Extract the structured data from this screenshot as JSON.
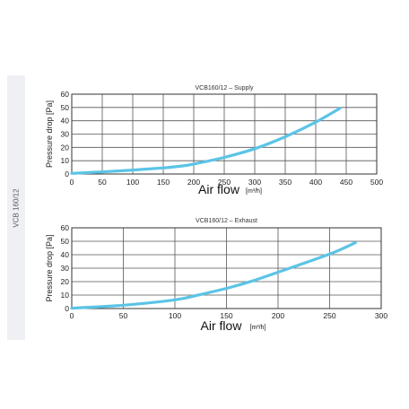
{
  "side_label": "VCB 160/12",
  "colors": {
    "curve": "#5bc4e6",
    "grid": "#555555",
    "side_band": "#eef0f4"
  },
  "chart_data": [
    {
      "type": "line",
      "title": "VCB160/12 – Supply",
      "ylabel": "Pressure drop [Pa]",
      "xlabel_main": "Air flow",
      "xlabel_unit": "[m³/h]",
      "xlim": [
        0,
        500
      ],
      "ylim": [
        0,
        60
      ],
      "x_ticks": [
        0,
        50,
        100,
        150,
        200,
        250,
        300,
        350,
        400,
        450,
        500
      ],
      "y_ticks": [
        0,
        10,
        20,
        30,
        40,
        50,
        60
      ],
      "grid": true,
      "series": [
        {
          "x": [
            0,
            50,
            100,
            150,
            180,
            200,
            250,
            300,
            350,
            400,
            440
          ],
          "y": [
            0.5,
            1.6,
            3,
            4.6,
            6,
            7.5,
            12.5,
            19,
            28,
            39,
            49.5
          ]
        }
      ]
    },
    {
      "type": "line",
      "title": "VCB160/12 – Exhaust",
      "ylabel": "Pressure drop [Pa]",
      "xlabel_main": "Air flow",
      "xlabel_unit": "[m³/h]",
      "xlim": [
        0,
        300
      ],
      "ylim": [
        0,
        60
      ],
      "x_ticks": [
        0,
        50,
        100,
        150,
        200,
        250,
        300
      ],
      "y_ticks": [
        0,
        10,
        20,
        30,
        40,
        50,
        60
      ],
      "grid": true,
      "series": [
        {
          "x": [
            0,
            50,
            100,
            125,
            150,
            175,
            200,
            250,
            275
          ],
          "y": [
            0.3,
            2.5,
            6.5,
            10.5,
            15,
            20.5,
            27,
            40.5,
            49
          ]
        }
      ]
    }
  ]
}
